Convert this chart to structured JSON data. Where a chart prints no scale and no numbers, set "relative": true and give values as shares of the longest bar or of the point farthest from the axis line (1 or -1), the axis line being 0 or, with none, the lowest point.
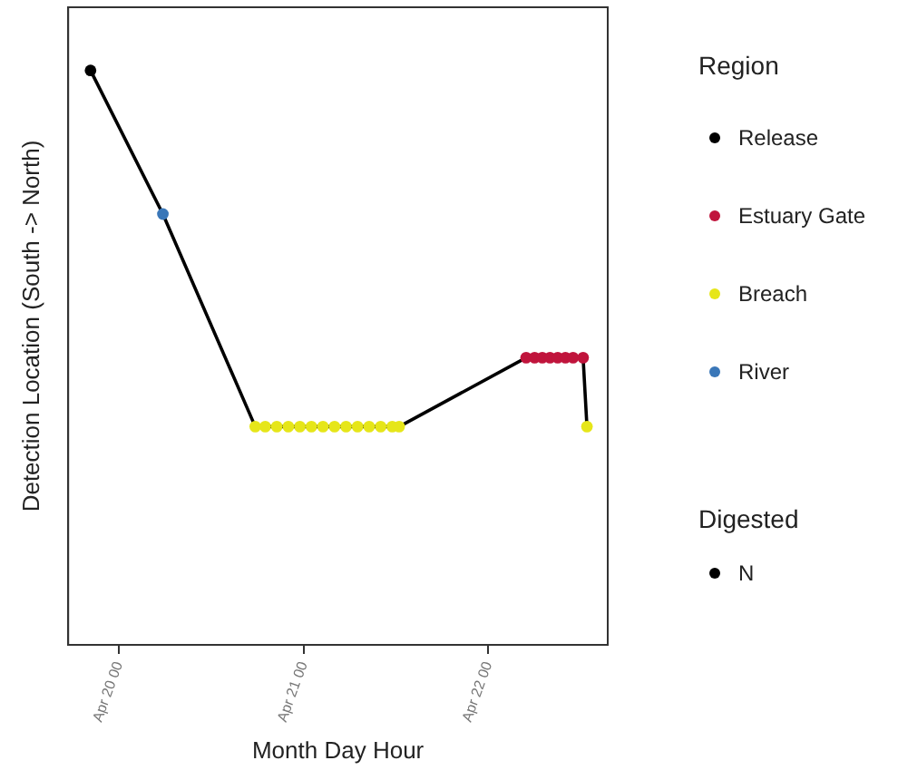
{
  "chart_data": {
    "type": "scatter",
    "xlabel": "Month Day Hour",
    "ylabel": "Detection Location (South -> North)",
    "legend_title": "Region",
    "legend": "right",
    "marker": "circle",
    "grid": false,
    "relative": true,
    "xlim": [
      "--04-19T17:24",
      "--04-22T15:30"
    ],
    "xticks": [
      {
        "value": "--04-20T00:00",
        "label": "Apr 20 00"
      },
      {
        "value": "--04-21T00:00",
        "label": "Apr 21 00"
      },
      {
        "value": "--04-22T00:00",
        "label": "Apr 22 00"
      }
    ],
    "series": [
      {
        "type": "line",
        "marker": "none",
        "color": "#000000",
        "x": [
          "--04-19T20:18",
          "--04-20T05:42",
          "--04-20T17:42",
          "--04-21T12:24",
          "--04-22T04:54",
          "--04-22T12:18",
          "--04-22T12:48"
        ],
        "values": [
          1,
          0.75,
          0.38,
          0.38,
          0.5,
          0.5,
          0.38
        ]
      },
      {
        "name": "Release",
        "color": "#000000",
        "x": [
          "--04-19T20:18"
        ],
        "values": [
          1
        ]
      },
      {
        "name": "Estuary Gate",
        "color": "#c0143c",
        "x": [
          "--04-22T04:54",
          "--04-22T06:00",
          "--04-22T07:00",
          "--04-22T08:00",
          "--04-22T09:00",
          "--04-22T10:00",
          "--04-22T11:00",
          "--04-22T12:18"
        ],
        "values": [
          0.5,
          0.5,
          0.5,
          0.5,
          0.5,
          0.5,
          0.5,
          0.5
        ]
      },
      {
        "name": "Breach",
        "color": "#e6e619",
        "x": [
          "--04-20T17:42",
          "--04-20T19:00",
          "--04-20T20:30",
          "--04-20T22:00",
          "--04-20T23:30",
          "--04-21T01:00",
          "--04-21T02:30",
          "--04-21T04:00",
          "--04-21T05:30",
          "--04-21T07:00",
          "--04-21T08:30",
          "--04-21T10:00",
          "--04-21T11:30",
          "--04-21T12:24",
          "--04-22T12:48"
        ],
        "values": [
          0.38,
          0.38,
          0.38,
          0.38,
          0.38,
          0.38,
          0.38,
          0.38,
          0.38,
          0.38,
          0.38,
          0.38,
          0.38,
          0.38,
          0.38
        ]
      },
      {
        "name": "River",
        "color": "#3a77b8",
        "x": [
          "--04-20T05:42"
        ],
        "values": [
          0.75
        ]
      }
    ],
    "annotations": [
      "Digested",
      "N"
    ]
  }
}
